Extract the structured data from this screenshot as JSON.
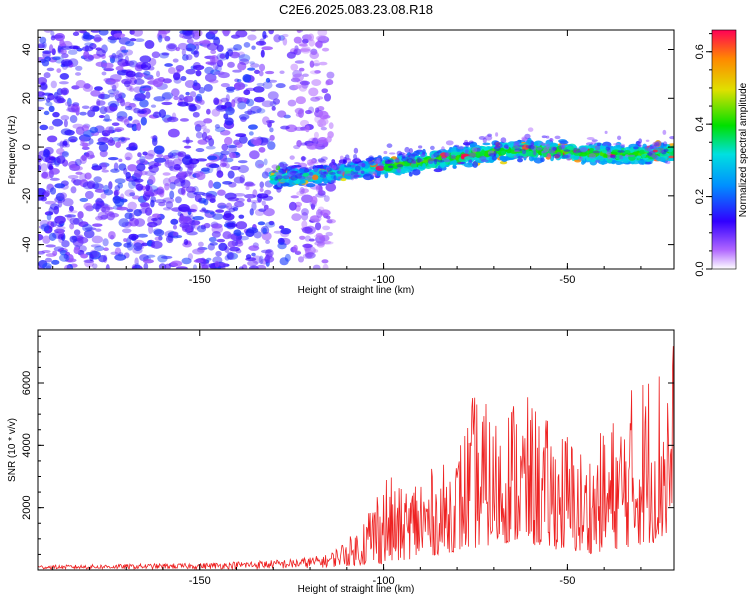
{
  "title": "C2E6.2025.083.23.08.R18",
  "chart_data": [
    {
      "type": "heatmap",
      "xlabel": "Height of straight line (km)",
      "ylabel": "Frequency (Hz)",
      "xlim": [
        -194,
        -21
      ],
      "ylim": [
        -50,
        48
      ],
      "xticks": [
        -150,
        -100,
        -50
      ],
      "yticks": [
        -40,
        -20,
        0,
        20,
        40
      ],
      "colorbar": {
        "label": "Normalized spectral amplitude",
        "range": [
          0.0,
          0.66
        ],
        "ticks": [
          0.0,
          0.2,
          0.4,
          0.6
        ],
        "colormap": "rainbow"
      },
      "ridge": {
        "x": [
          -130,
          -120,
          -110,
          -100,
          -90,
          -80,
          -70,
          -60,
          -50,
          -40,
          -30,
          -21
        ],
        "y": [
          -13,
          -12,
          -10,
          -8,
          -6,
          -4,
          -2,
          -1,
          -2,
          -3,
          -3,
          -2
        ]
      }
    },
    {
      "type": "line",
      "xlabel": "Height of straight line (km)",
      "ylabel": "SNR (10 * v/v)",
      "xlim": [
        -194,
        -21
      ],
      "ylim": [
        0,
        7700
      ],
      "xticks": [
        -150,
        -100,
        -50
      ],
      "yticks": [
        2000,
        4000,
        6000
      ],
      "series": [
        {
          "color": "#ee2222",
          "envelope": {
            "x": [
              -194,
              -150,
              -125,
              -115,
              -108,
              -100,
              -95,
              -90,
              -85,
              -80,
              -75,
              -70,
              -65,
              -60,
              -55,
              -50,
              -45,
              -40,
              -35,
              -30,
              -25,
              -21
            ],
            "low": [
              30,
              30,
              40,
              80,
              150,
              200,
              300,
              400,
              500,
              600,
              700,
              800,
              900,
              800,
              700,
              600,
              500,
              600,
              700,
              800,
              900,
              1000
            ],
            "high": [
              150,
              220,
              350,
              500,
              1200,
              3300,
              2600,
              3400,
              3200,
              4000,
              5900,
              5000,
              5800,
              5500,
              4800,
              4600,
              3800,
              4600,
              5400,
              6500,
              6900,
              7600
            ]
          }
        }
      ]
    }
  ]
}
